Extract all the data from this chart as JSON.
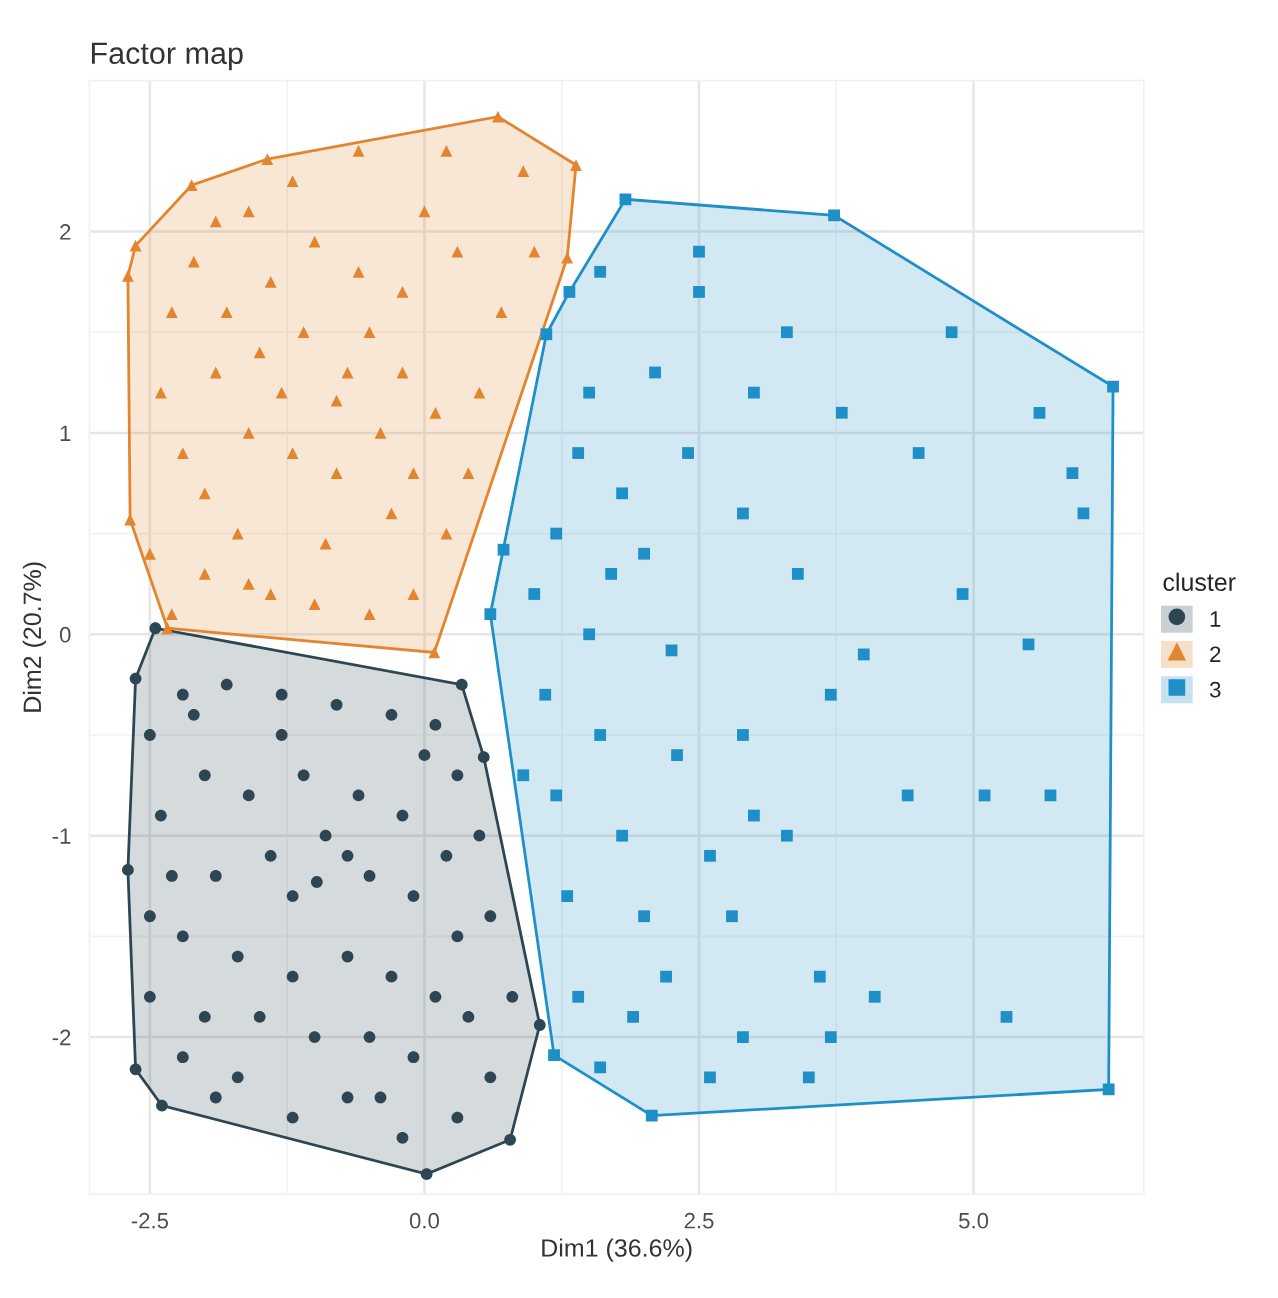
{
  "chart_data": {
    "type": "scatter",
    "title": "Factor map",
    "xlabel": "Dim1 (36.6%)",
    "ylabel": "Dim2 (20.7%)",
    "legend_title": "cluster",
    "xlim": [
      -3.05,
      6.55
    ],
    "ylim": [
      -2.78,
      2.75
    ],
    "xticks": [
      {
        "value": -2.5,
        "label": "-2.5"
      },
      {
        "value": 0,
        "label": "0.0"
      },
      {
        "value": 2.5,
        "label": "2.5"
      },
      {
        "value": 5,
        "label": "5.0"
      }
    ],
    "yticks": [
      -2,
      -1,
      0,
      1,
      2
    ],
    "grid": true,
    "legend": "right",
    "series": [
      {
        "name": "1",
        "color": "#2e4653",
        "marker": "circle",
        "x": [
          -2.45,
          0.34,
          0.54,
          1.05,
          0.78,
          0.02,
          -2.39,
          -2.63,
          -2.7,
          -2.63,
          -2.2,
          -1.8,
          -1.3,
          -0.8,
          -0.3,
          0.1,
          0.3,
          0.5,
          0.6,
          0.8,
          0.6,
          0.3,
          -0.2,
          -0.7,
          -1.2,
          -1.7,
          -2.2,
          -2.5,
          -2.5,
          -2.4,
          -2.5,
          -2.0,
          -1.6,
          -1.1,
          -0.6,
          -0.2,
          0.2,
          -0.1,
          -0.5,
          -0.98,
          -1.4,
          -1.9,
          -2.2,
          -1.7,
          -1.2,
          -0.7,
          -0.3,
          0.1,
          0.4,
          -0.1,
          -0.5,
          -1.0,
          -1.5,
          -2.0,
          -2.3,
          -1.3,
          -0.9,
          -0.7,
          -1.2,
          0.3,
          -0.4,
          -1.9,
          -2.1,
          0.0
        ],
        "values": [
          0.03,
          -0.25,
          -0.61,
          -1.94,
          -2.51,
          -2.68,
          -2.34,
          -2.16,
          -1.17,
          -0.22,
          -0.3,
          -0.25,
          -0.3,
          -0.35,
          -0.4,
          -0.45,
          -0.7,
          -1.0,
          -1.4,
          -1.8,
          -2.2,
          -2.4,
          -2.5,
          -2.3,
          -2.4,
          -2.2,
          -2.1,
          -1.8,
          -1.4,
          -0.9,
          -0.5,
          -0.7,
          -0.8,
          -0.7,
          -0.8,
          -0.9,
          -1.1,
          -1.3,
          -1.2,
          -1.23,
          -1.1,
          -1.2,
          -1.5,
          -1.6,
          -1.7,
          -1.6,
          -1.7,
          -1.8,
          -1.9,
          -2.1,
          -2.0,
          -2.0,
          -1.9,
          -1.9,
          -1.2,
          -0.5,
          -1.0,
          -1.1,
          -1.3,
          -1.5,
          -2.3,
          -2.3,
          -0.4,
          -0.6
        ]
      },
      {
        "name": "2",
        "color": "#e3852f",
        "marker": "triangle",
        "x": [
          0.67,
          1.38,
          1.3,
          0.09,
          -2.34,
          -2.68,
          -2.7,
          -2.63,
          -2.12,
          -1.43,
          -2.3,
          -2.1,
          -1.9,
          -1.6,
          -1.2,
          -0.6,
          0.2,
          0.9,
          -2.4,
          -2.2,
          -2.5,
          -2.0,
          -1.7,
          -1.4,
          -1.0,
          -0.5,
          -0.1,
          -0.3,
          -0.8,
          -1.2,
          -1.6,
          -1.9,
          -1.5,
          -1.1,
          -0.7,
          -0.4,
          -0.1,
          0.2,
          0.4,
          0.5,
          0.7,
          1.0,
          0.3,
          -0.2,
          -0.6,
          -1.0,
          -1.4,
          -1.8,
          -2.0,
          -0.9,
          -0.2,
          0.1,
          -0.8,
          -1.3,
          -0.5,
          0.0,
          -2.3,
          -1.6
        ],
        "values": [
          2.57,
          2.33,
          1.87,
          -0.09,
          0.03,
          0.57,
          1.78,
          1.93,
          2.23,
          2.36,
          1.6,
          1.85,
          2.05,
          2.1,
          2.25,
          2.4,
          2.4,
          2.3,
          1.2,
          0.9,
          0.4,
          0.3,
          0.5,
          0.2,
          0.15,
          0.1,
          0.2,
          0.6,
          0.8,
          0.9,
          1.0,
          1.3,
          1.4,
          1.5,
          1.3,
          1.0,
          0.8,
          0.5,
          0.8,
          1.2,
          1.6,
          1.9,
          1.9,
          1.7,
          1.8,
          1.95,
          1.75,
          1.6,
          0.7,
          0.45,
          1.3,
          1.1,
          1.16,
          1.2,
          1.5,
          2.1,
          0.1,
          0.25
        ]
      },
      {
        "name": "3",
        "color": "#1f8fc7",
        "marker": "square",
        "x": [
          1.83,
          3.73,
          6.27,
          6.23,
          2.07,
          1.18,
          0.6,
          0.72,
          1.11,
          1.32,
          1.6,
          2.5,
          2.5,
          3.3,
          2.1,
          1.5,
          1.4,
          1.8,
          2.4,
          3.0,
          3.8,
          4.5,
          5.6,
          5.9,
          4.9,
          5.5,
          4.0,
          3.4,
          2.9,
          2.0,
          1.2,
          1.0,
          1.5,
          2.25,
          1.1,
          1.6,
          2.3,
          2.9,
          3.7,
          1.2,
          1.8,
          2.6,
          3.3,
          4.4,
          5.1,
          5.7,
          1.3,
          2.0,
          2.8,
          3.6,
          1.4,
          1.9,
          2.9,
          3.7,
          4.1,
          5.3,
          1.6,
          2.6,
          3.5,
          6.0,
          4.8,
          3.0,
          1.7,
          2.2,
          0.9
        ],
        "values": [
          2.16,
          2.08,
          1.23,
          -2.26,
          -2.39,
          -2.09,
          0.1,
          0.42,
          1.49,
          1.7,
          1.8,
          1.9,
          1.7,
          1.5,
          1.3,
          1.2,
          0.9,
          0.7,
          0.9,
          1.2,
          1.1,
          0.9,
          1.1,
          0.8,
          0.2,
          -0.05,
          -0.1,
          0.3,
          0.6,
          0.4,
          0.5,
          0.2,
          0.0,
          -0.08,
          -0.3,
          -0.5,
          -0.6,
          -0.5,
          -0.3,
          -0.8,
          -1.0,
          -1.1,
          -1.0,
          -0.8,
          -0.8,
          -0.8,
          -1.3,
          -1.4,
          -1.4,
          -1.7,
          -1.8,
          -1.9,
          -2.0,
          -2.0,
          -1.8,
          -1.9,
          -2.15,
          -2.2,
          -2.2,
          0.6,
          1.5,
          -0.9,
          0.3,
          -1.7,
          -0.7
        ]
      }
    ]
  }
}
